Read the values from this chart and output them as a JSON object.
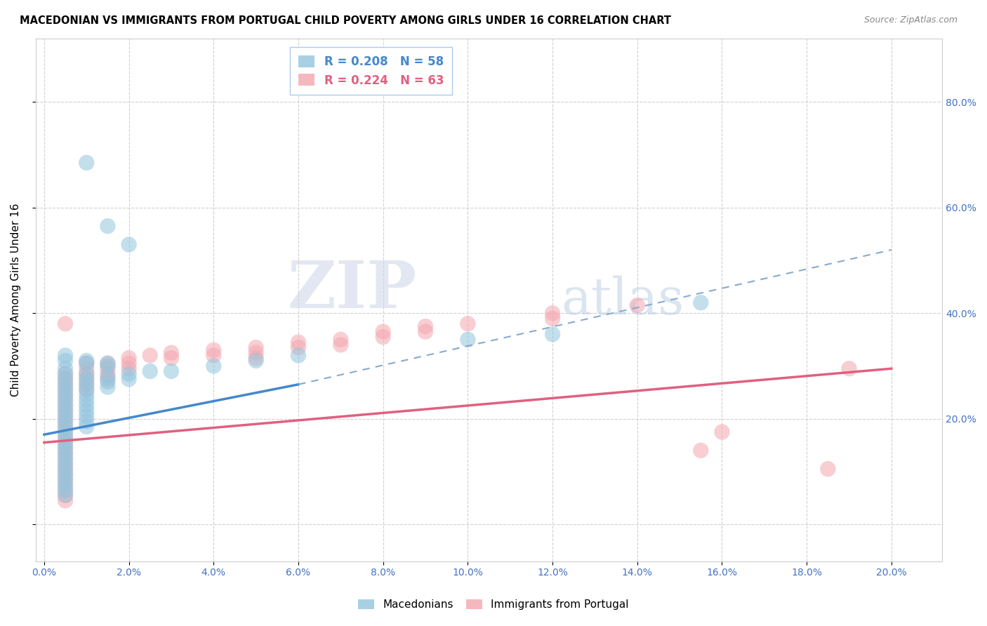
{
  "title": "MACEDONIAN VS IMMIGRANTS FROM PORTUGAL CHILD POVERTY AMONG GIRLS UNDER 16 CORRELATION CHART",
  "source": "Source: ZipAtlas.com",
  "ylabel": "Child Poverty Among Girls Under 16",
  "legend_macedonian": "R = 0.208   N = 58",
  "legend_portugal": "R = 0.224   N = 63",
  "legend_label_mac": "Macedonians",
  "legend_label_port": "Immigrants from Portugal",
  "color_mac": "#92c5de",
  "color_port": "#f4a6b0",
  "color_mac_line": "#4488cc",
  "color_port_line": "#e06080",
  "color_mac_dash": "#88aacc",
  "watermark_zip": "ZIP",
  "watermark_atlas": "atlas",
  "xlim": [
    -0.002,
    0.212
  ],
  "ylim": [
    -0.07,
    0.92
  ],
  "x_ticks": [
    0.0,
    0.02,
    0.04,
    0.06,
    0.08,
    0.1,
    0.12,
    0.14,
    0.16,
    0.18,
    0.2
  ],
  "y_ticks": [
    0.0,
    0.2,
    0.4,
    0.6,
    0.8
  ],
  "mac_scatter": [
    [
      0.01,
      0.685
    ],
    [
      0.015,
      0.565
    ],
    [
      0.02,
      0.53
    ],
    [
      0.005,
      0.295
    ],
    [
      0.005,
      0.32
    ],
    [
      0.005,
      0.31
    ],
    [
      0.01,
      0.31
    ],
    [
      0.01,
      0.305
    ],
    [
      0.015,
      0.305
    ],
    [
      0.015,
      0.3
    ],
    [
      0.005,
      0.285
    ],
    [
      0.005,
      0.275
    ],
    [
      0.005,
      0.265
    ],
    [
      0.005,
      0.255
    ],
    [
      0.005,
      0.245
    ],
    [
      0.005,
      0.235
    ],
    [
      0.005,
      0.225
    ],
    [
      0.005,
      0.215
    ],
    [
      0.005,
      0.205
    ],
    [
      0.005,
      0.195
    ],
    [
      0.005,
      0.185
    ],
    [
      0.005,
      0.175
    ],
    [
      0.005,
      0.165
    ],
    [
      0.005,
      0.155
    ],
    [
      0.005,
      0.145
    ],
    [
      0.005,
      0.135
    ],
    [
      0.005,
      0.125
    ],
    [
      0.005,
      0.115
    ],
    [
      0.005,
      0.105
    ],
    [
      0.005,
      0.095
    ],
    [
      0.005,
      0.085
    ],
    [
      0.005,
      0.075
    ],
    [
      0.005,
      0.065
    ],
    [
      0.005,
      0.055
    ],
    [
      0.01,
      0.285
    ],
    [
      0.01,
      0.275
    ],
    [
      0.01,
      0.265
    ],
    [
      0.01,
      0.255
    ],
    [
      0.01,
      0.245
    ],
    [
      0.01,
      0.235
    ],
    [
      0.01,
      0.225
    ],
    [
      0.01,
      0.215
    ],
    [
      0.01,
      0.205
    ],
    [
      0.01,
      0.195
    ],
    [
      0.01,
      0.185
    ],
    [
      0.015,
      0.28
    ],
    [
      0.015,
      0.27
    ],
    [
      0.015,
      0.26
    ],
    [
      0.02,
      0.285
    ],
    [
      0.02,
      0.275
    ],
    [
      0.025,
      0.29
    ],
    [
      0.03,
      0.29
    ],
    [
      0.04,
      0.3
    ],
    [
      0.05,
      0.31
    ],
    [
      0.06,
      0.32
    ],
    [
      0.1,
      0.35
    ],
    [
      0.12,
      0.36
    ],
    [
      0.155,
      0.42
    ]
  ],
  "port_scatter": [
    [
      0.005,
      0.38
    ],
    [
      0.005,
      0.285
    ],
    [
      0.005,
      0.275
    ],
    [
      0.005,
      0.265
    ],
    [
      0.005,
      0.255
    ],
    [
      0.005,
      0.245
    ],
    [
      0.005,
      0.235
    ],
    [
      0.005,
      0.225
    ],
    [
      0.005,
      0.215
    ],
    [
      0.005,
      0.205
    ],
    [
      0.005,
      0.195
    ],
    [
      0.005,
      0.185
    ],
    [
      0.005,
      0.175
    ],
    [
      0.005,
      0.165
    ],
    [
      0.005,
      0.155
    ],
    [
      0.005,
      0.145
    ],
    [
      0.005,
      0.135
    ],
    [
      0.005,
      0.125
    ],
    [
      0.005,
      0.115
    ],
    [
      0.005,
      0.105
    ],
    [
      0.005,
      0.095
    ],
    [
      0.005,
      0.085
    ],
    [
      0.005,
      0.075
    ],
    [
      0.005,
      0.065
    ],
    [
      0.005,
      0.055
    ],
    [
      0.005,
      0.045
    ],
    [
      0.01,
      0.305
    ],
    [
      0.01,
      0.295
    ],
    [
      0.01,
      0.285
    ],
    [
      0.01,
      0.275
    ],
    [
      0.01,
      0.265
    ],
    [
      0.01,
      0.255
    ],
    [
      0.015,
      0.305
    ],
    [
      0.015,
      0.295
    ],
    [
      0.015,
      0.285
    ],
    [
      0.015,
      0.275
    ],
    [
      0.02,
      0.315
    ],
    [
      0.02,
      0.305
    ],
    [
      0.02,
      0.295
    ],
    [
      0.025,
      0.32
    ],
    [
      0.03,
      0.325
    ],
    [
      0.03,
      0.315
    ],
    [
      0.04,
      0.33
    ],
    [
      0.04,
      0.32
    ],
    [
      0.05,
      0.335
    ],
    [
      0.05,
      0.325
    ],
    [
      0.05,
      0.315
    ],
    [
      0.06,
      0.345
    ],
    [
      0.06,
      0.335
    ],
    [
      0.07,
      0.35
    ],
    [
      0.07,
      0.34
    ],
    [
      0.08,
      0.365
    ],
    [
      0.08,
      0.355
    ],
    [
      0.09,
      0.375
    ],
    [
      0.09,
      0.365
    ],
    [
      0.1,
      0.38
    ],
    [
      0.12,
      0.4
    ],
    [
      0.12,
      0.39
    ],
    [
      0.14,
      0.415
    ],
    [
      0.155,
      0.14
    ],
    [
      0.16,
      0.175
    ],
    [
      0.185,
      0.105
    ],
    [
      0.19,
      0.295
    ]
  ],
  "mac_line_solid": [
    [
      0.0,
      0.17
    ],
    [
      0.06,
      0.265
    ]
  ],
  "mac_line_dash": [
    [
      0.06,
      0.265
    ],
    [
      0.2,
      0.52
    ]
  ],
  "port_line": [
    [
      0.0,
      0.155
    ],
    [
      0.2,
      0.295
    ]
  ]
}
